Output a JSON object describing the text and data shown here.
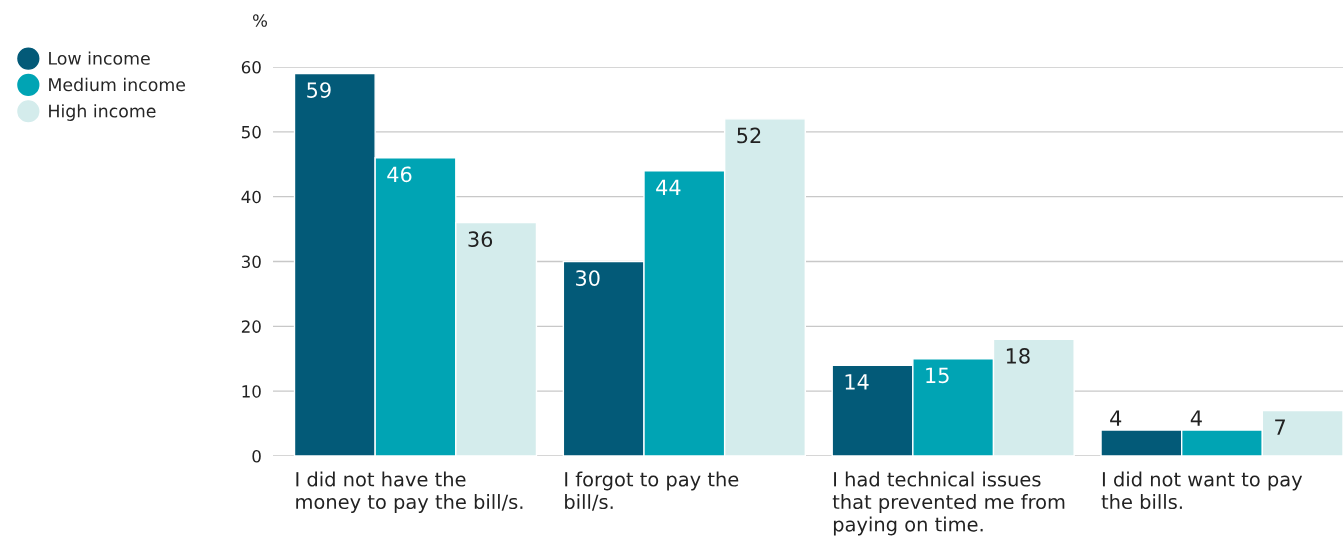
{
  "chart_data": {
    "type": "bar",
    "ylabel": "%",
    "categories": [
      "I did not have the\nmoney to pay the bill/s.",
      "I forgot to pay the\nbill/s.",
      "I had technical issues\nthat prevented me from\npaying on time.",
      "I did not want to pay\nthe bills."
    ],
    "series": [
      {
        "name": "Low income",
        "color": "#035a78",
        "values": [
          59,
          30,
          14,
          4
        ]
      },
      {
        "name": "Medium income",
        "color": "#00a4b4",
        "values": [
          46,
          44,
          15,
          4
        ]
      },
      {
        "name": "High income",
        "color": "#d4ecec",
        "values": [
          36,
          52,
          18,
          7
        ]
      }
    ],
    "ylim": [
      0,
      60
    ],
    "yticks": [
      0,
      10,
      20,
      30,
      40,
      50,
      60
    ],
    "grid": "y",
    "legend": "top left",
    "marker": "circle",
    "data_labels": true
  }
}
